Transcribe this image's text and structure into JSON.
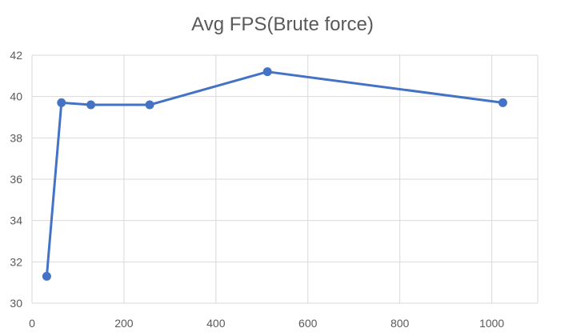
{
  "chart_data": {
    "type": "scatter",
    "title": "Avg FPS(Brute force)",
    "xlabel": "",
    "ylabel": "",
    "xlim": [
      0,
      1100
    ],
    "ylim": [
      30,
      42
    ],
    "xticks": [
      0,
      200,
      400,
      600,
      800,
      1000
    ],
    "yticks": [
      30,
      32,
      34,
      36,
      38,
      40,
      42
    ],
    "grid": true,
    "legend": "none",
    "series": [
      {
        "color": "#4472C4",
        "marker": "circle",
        "line": "straight",
        "x": [
          32,
          64,
          128,
          256,
          512,
          1024
        ],
        "y": [
          31.3,
          39.7,
          39.6,
          39.6,
          41.2,
          39.7
        ]
      }
    ]
  }
}
